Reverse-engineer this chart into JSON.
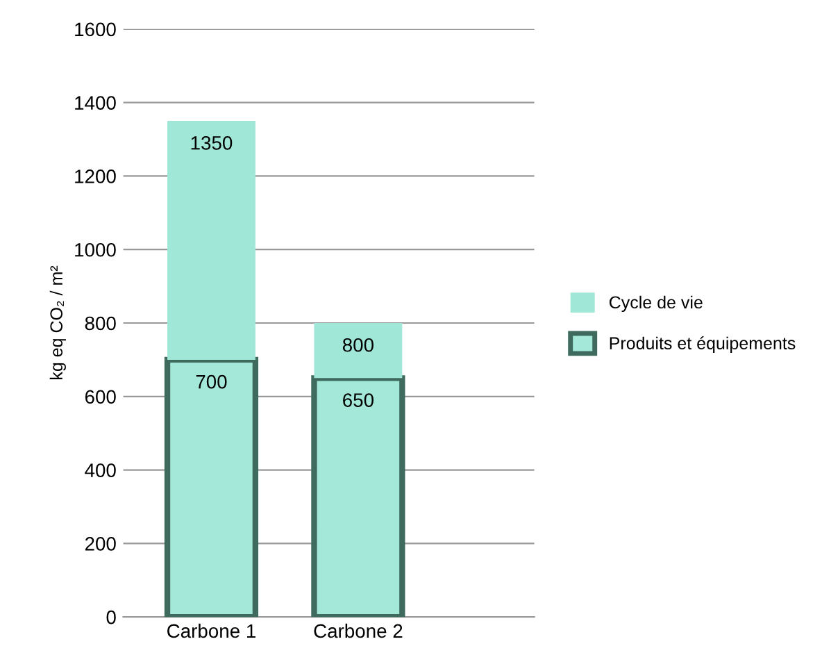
{
  "chart_data": {
    "type": "bar",
    "stacked": true,
    "ylabel": "kg eq CO₂ / m²",
    "categories": [
      "Carbone 1",
      "Carbone 2"
    ],
    "series": [
      {
        "name": "Produits et équipements",
        "color": "#a3e8d9",
        "values": [
          700,
          650
        ],
        "value_labels": [
          "700",
          "650"
        ]
      },
      {
        "name": "Cycle de vie",
        "color": "#a0e7d7",
        "values": [
          650,
          150
        ]
      }
    ],
    "totals": [
      "1350",
      "800"
    ],
    "ylim": [
      0,
      1600
    ],
    "yticks": [
      0,
      200,
      400,
      600,
      800,
      1000,
      1200,
      1400,
      1600
    ],
    "grid": "y",
    "legend": "right"
  }
}
